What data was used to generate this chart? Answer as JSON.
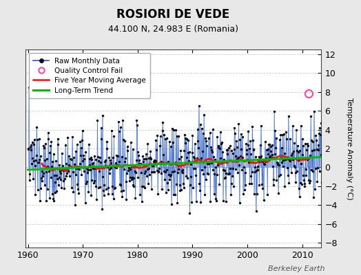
{
  "title": "ROSIORI DE VEDE",
  "subtitle": "44.100 N, 24.983 E (Romania)",
  "ylabel": "Temperature Anomaly (°C)",
  "xlabel_credit": "Berkeley Earth",
  "year_start": 1960,
  "year_end": 2014,
  "ylim": [
    -8.5,
    12.5
  ],
  "yticks": [
    -8,
    -6,
    -4,
    -2,
    0,
    2,
    4,
    6,
    8,
    10,
    12
  ],
  "xticks": [
    1960,
    1970,
    1980,
    1990,
    2000,
    2010
  ],
  "bar_color": "#7799dd",
  "line_color": "#2255cc",
  "dot_color": "#111111",
  "mavg_color": "#ee1111",
  "trend_color": "#00bb00",
  "qc_color": "#ff44aa",
  "background_color": "#e8e8e8",
  "plot_bg_color": "#ffffff",
  "grid_color": "#cccccc",
  "seed": 137
}
